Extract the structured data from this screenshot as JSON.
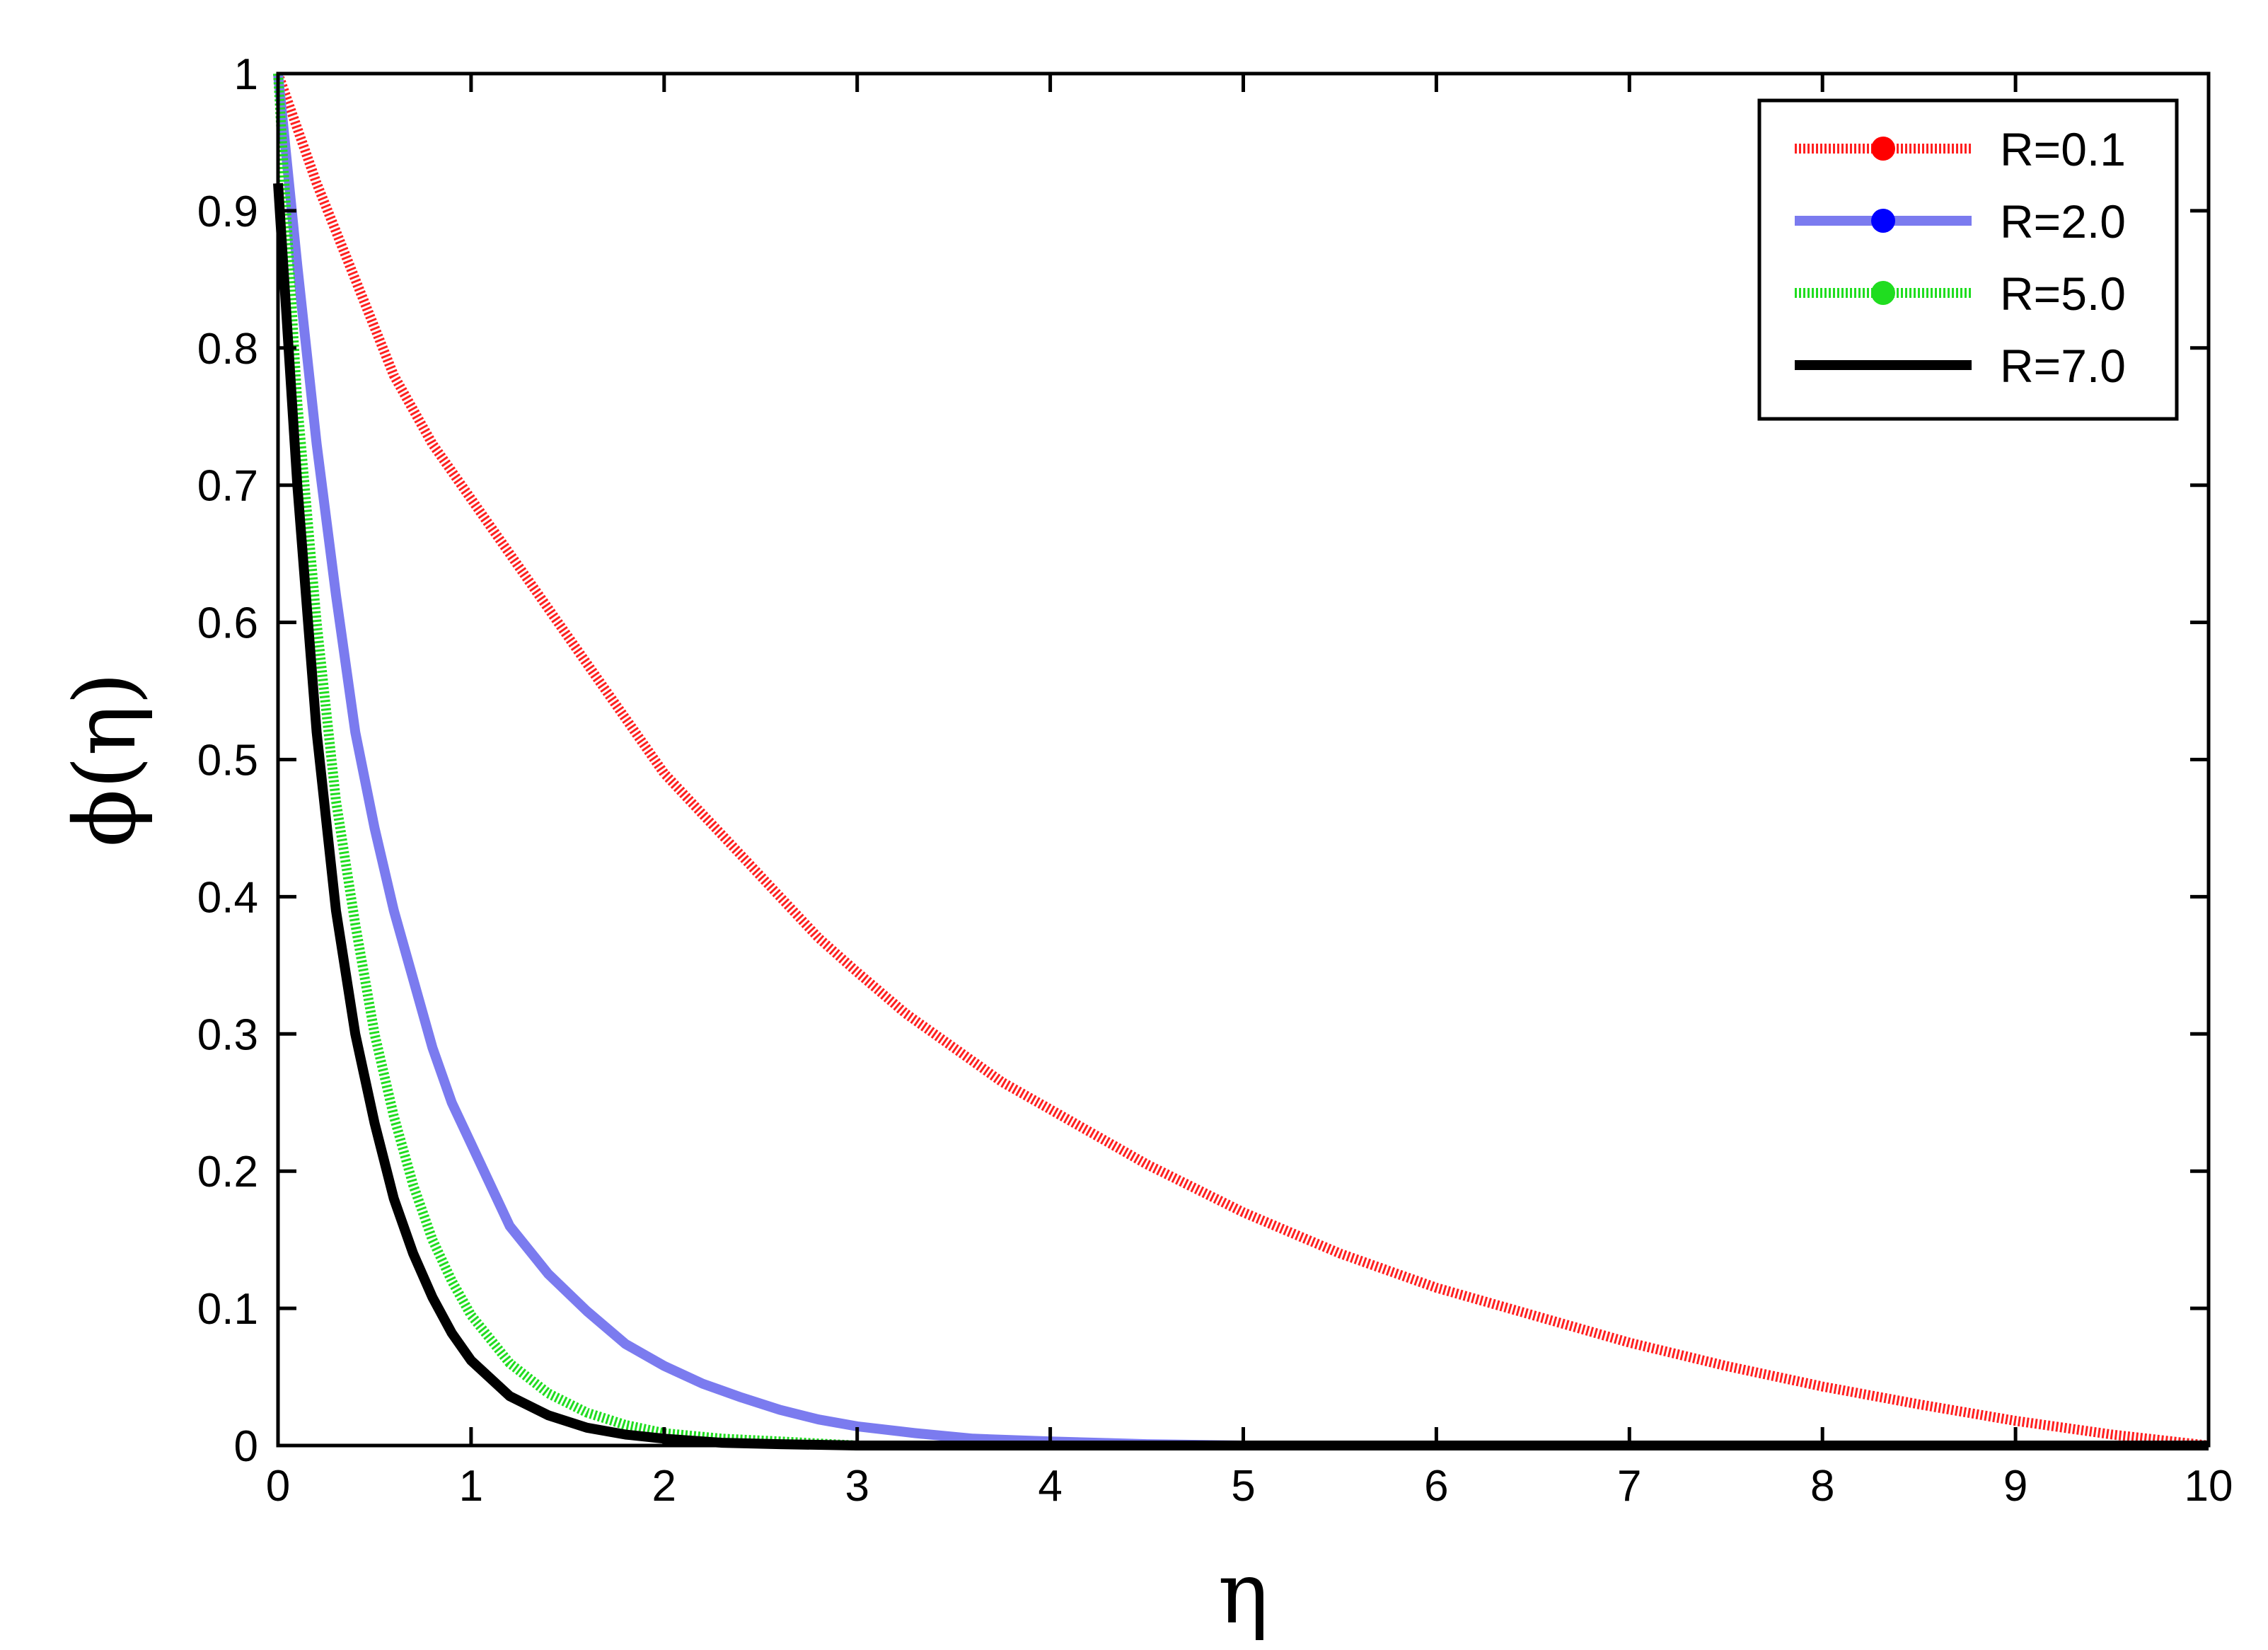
{
  "chart_data": {
    "type": "line",
    "title": "",
    "xlabel": "η",
    "ylabel": "ϕ(η)",
    "xlim": [
      0,
      10
    ],
    "ylim": [
      0,
      1
    ],
    "xticks": [
      0,
      1,
      2,
      3,
      4,
      5,
      6,
      7,
      8,
      9,
      10
    ],
    "yticks": [
      0,
      0.1,
      0.2,
      0.3,
      0.4,
      0.5,
      0.6,
      0.7,
      0.8,
      0.9,
      1
    ],
    "xtick_labels": [
      "0",
      "1",
      "2",
      "3",
      "4",
      "5",
      "6",
      "7",
      "8",
      "9",
      "10"
    ],
    "ytick_labels": [
      "0",
      "0.1",
      "0.2",
      "0.3",
      "0.4",
      "0.5",
      "0.6",
      "0.7",
      "0.8",
      "0.9",
      "1"
    ],
    "grid": false,
    "legend_position": "top-right",
    "series": [
      {
        "name": "R=0.1",
        "color": "#ff2020",
        "style": "dotted-thick",
        "x": [
          0,
          0.2,
          0.4,
          0.6,
          0.8,
          1.0,
          1.2,
          1.4,
          1.6,
          1.8,
          2.0,
          2.2,
          2.4,
          2.6,
          2.8,
          3.0,
          3.25,
          3.5,
          3.75,
          4.0,
          4.5,
          5.0,
          5.5,
          6.0,
          6.5,
          7.0,
          7.5,
          8.0,
          8.5,
          9.0,
          9.5,
          10.0
        ],
        "y": [
          1.0,
          0.92,
          0.85,
          0.78,
          0.73,
          0.69,
          0.65,
          0.61,
          0.57,
          0.53,
          0.49,
          0.46,
          0.43,
          0.4,
          0.37,
          0.345,
          0.315,
          0.29,
          0.265,
          0.245,
          0.205,
          0.17,
          0.14,
          0.115,
          0.095,
          0.075,
          0.058,
          0.043,
          0.03,
          0.018,
          0.008,
          0.0
        ]
      },
      {
        "name": "R=2.0",
        "color": "#7b7bef",
        "style": "solid-thick",
        "x": [
          0,
          0.1,
          0.2,
          0.3,
          0.4,
          0.5,
          0.6,
          0.7,
          0.8,
          0.9,
          1.0,
          1.2,
          1.4,
          1.6,
          1.8,
          2.0,
          2.2,
          2.4,
          2.6,
          2.8,
          3.0,
          3.3,
          3.6,
          4.0,
          4.5,
          5.0,
          10.0
        ],
        "y": [
          1.0,
          0.86,
          0.73,
          0.62,
          0.52,
          0.45,
          0.39,
          0.34,
          0.29,
          0.25,
          0.22,
          0.16,
          0.125,
          0.098,
          0.074,
          0.058,
          0.045,
          0.035,
          0.026,
          0.019,
          0.014,
          0.009,
          0.005,
          0.003,
          0.001,
          0.0,
          0.0
        ]
      },
      {
        "name": "R=5.0",
        "color": "#20dd20",
        "style": "dotted-thick",
        "x": [
          0,
          0.1,
          0.2,
          0.3,
          0.4,
          0.5,
          0.6,
          0.7,
          0.8,
          0.9,
          1.0,
          1.2,
          1.4,
          1.6,
          1.8,
          2.0,
          2.3,
          2.6,
          3.0,
          10.0
        ],
        "y": [
          1.0,
          0.76,
          0.6,
          0.47,
          0.38,
          0.3,
          0.24,
          0.19,
          0.15,
          0.12,
          0.095,
          0.06,
          0.038,
          0.024,
          0.015,
          0.009,
          0.005,
          0.003,
          0.0,
          0.0
        ]
      },
      {
        "name": "R=7.0",
        "color": "#000000",
        "style": "solid-thick",
        "x": [
          0,
          0.1,
          0.2,
          0.3,
          0.4,
          0.5,
          0.6,
          0.7,
          0.8,
          0.9,
          1.0,
          1.2,
          1.4,
          1.6,
          1.8,
          2.0,
          2.3,
          2.6,
          3.0,
          10.0
        ],
        "y": [
          0.92,
          0.7,
          0.52,
          0.39,
          0.3,
          0.235,
          0.18,
          0.14,
          0.108,
          0.082,
          0.062,
          0.036,
          0.022,
          0.013,
          0.008,
          0.005,
          0.002,
          0.001,
          0.0,
          0.0
        ]
      }
    ]
  }
}
